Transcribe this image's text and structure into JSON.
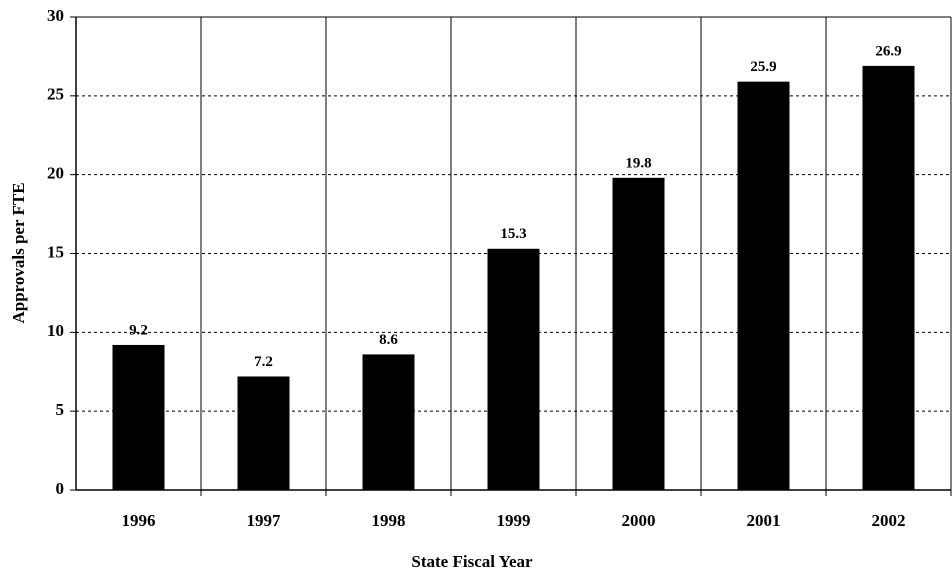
{
  "chart_data": {
    "type": "bar",
    "x_label": "State Fiscal Year",
    "y_label": "Approvals per FTE",
    "categories": [
      "1996",
      "1997",
      "1998",
      "1999",
      "2000",
      "2001",
      "2002"
    ],
    "values": [
      9.2,
      7.2,
      8.6,
      15.3,
      19.8,
      25.9,
      26.9
    ],
    "color": "#000000",
    "ylim": [
      0,
      30
    ],
    "yticks": [
      0,
      5,
      10,
      15,
      20,
      25,
      30
    ],
    "grid": true
  }
}
